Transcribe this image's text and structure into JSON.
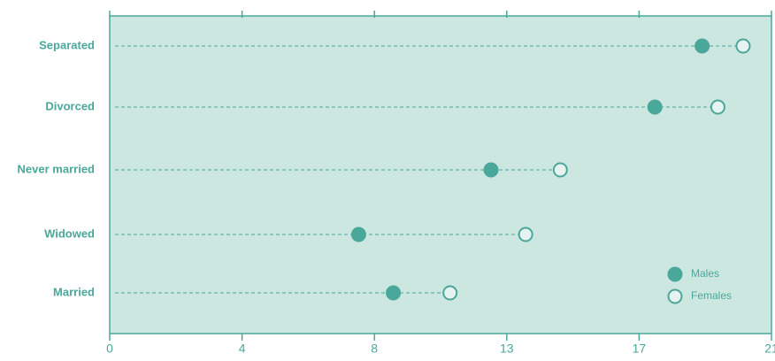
{
  "chart_data": {
    "type": "dot",
    "categories": [
      "Separated",
      "Divorced",
      "Never married",
      "Widowed",
      "Married"
    ],
    "series": [
      {
        "name": "Males",
        "color": "#4aa89a",
        "filled": true,
        "values": [
          18.8,
          17.3,
          12.1,
          7.9,
          9.0
        ]
      },
      {
        "name": "Females",
        "color": "#4aa89a",
        "filled": false,
        "values": [
          20.1,
          19.3,
          14.3,
          13.2,
          10.8
        ]
      }
    ],
    "xlim": [
      0,
      21
    ],
    "xticks": [
      0,
      {
        "value": 4.2,
        "label": "4"
      },
      {
        "value": 8.4,
        "label": "8"
      },
      {
        "value": 12.6,
        "label": "13"
      },
      {
        "value": 16.8,
        "label": "17"
      },
      21
    ],
    "legend": "bottom-right"
  }
}
